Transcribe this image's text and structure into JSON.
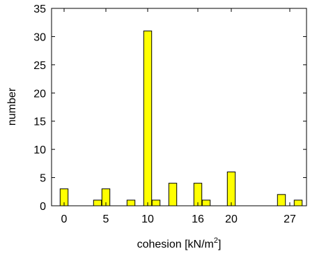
{
  "chart_data": {
    "type": "bar",
    "x": [
      0,
      2,
      4,
      5,
      8,
      10,
      11,
      13,
      16,
      17,
      20,
      26,
      28
    ],
    "values": [
      3,
      0,
      1,
      3,
      1,
      31,
      1,
      4,
      4,
      1,
      6,
      2,
      1
    ],
    "xticks": [
      0,
      5,
      10,
      16,
      20,
      27
    ],
    "xtick_labels": [
      "0",
      "5",
      "10",
      "16",
      "20",
      "27"
    ],
    "yticks": [
      0,
      5,
      10,
      15,
      20,
      25,
      30,
      35
    ],
    "ytick_labels": [
      "0",
      "5",
      "10",
      "15",
      "20",
      "25",
      "30",
      "35"
    ],
    "xlim": [
      -1.5,
      29
    ],
    "ylim": [
      0,
      35
    ],
    "xlabel": "cohesion [kN/m",
    "xlabel_sup": "2",
    "xlabel_suffix": "]",
    "ylabel": "number",
    "title": "",
    "grid": false,
    "legend": "none",
    "bar_color": "#ffff00",
    "bar_edge_color": "#000000"
  }
}
